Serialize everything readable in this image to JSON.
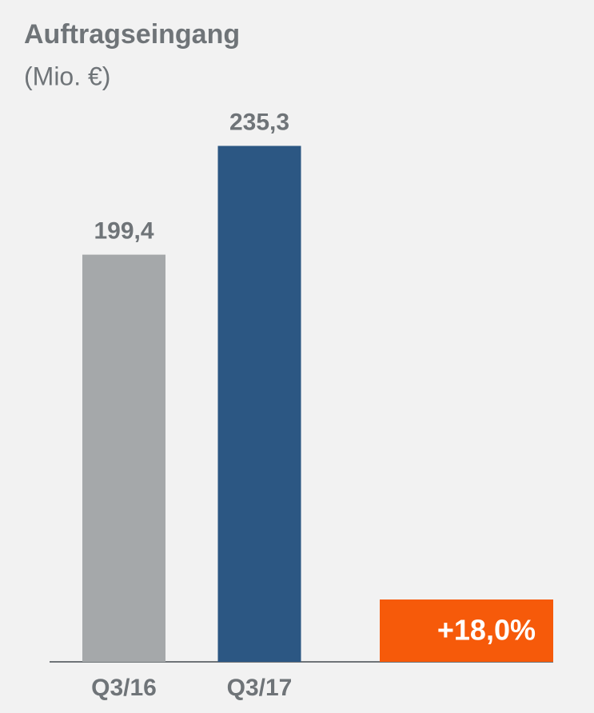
{
  "chart_data": {
    "type": "bar",
    "title": "Auftragseingang",
    "subtitle": "(Mio. €)",
    "categories": [
      "Q3/16",
      "Q3/17"
    ],
    "values": [
      199.4,
      235.3
    ],
    "value_labels": [
      "199,4",
      "235,3"
    ],
    "colors": [
      "#a5a8aa",
      "#2c5783"
    ],
    "ylim": [
      65,
      270
    ],
    "annotation": "+18,0%",
    "annotation_color": "#f65a0a"
  }
}
